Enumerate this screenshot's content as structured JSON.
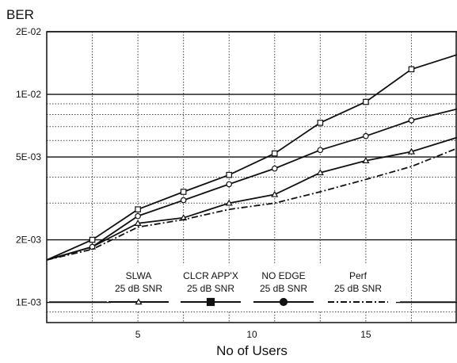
{
  "chart_data": {
    "type": "line",
    "title": "",
    "ylabel": "BER",
    "xlabel": "No of Users",
    "yscale": "log",
    "xlim": [
      1,
      19
    ],
    "ylim": [
      0.0008,
      0.02
    ],
    "x_ticks": [
      5,
      10,
      15
    ],
    "y_ticks": [
      {
        "value": 0.02,
        "label": "2E-02"
      },
      {
        "value": 0.01,
        "label": "1E-02"
      },
      {
        "value": 0.005,
        "label": "5E-03"
      },
      {
        "value": 0.002,
        "label": "2E-03"
      },
      {
        "value": 0.001,
        "label": "1E-03"
      }
    ],
    "grid": true,
    "legend_position": "bottom",
    "series": [
      {
        "name": "SLWA",
        "name_line2": "25 dB SNR",
        "marker": "triangle",
        "line_style": "solid",
        "x": [
          1,
          3,
          5,
          7,
          9,
          11,
          13,
          15,
          17,
          19
        ],
        "y": [
          0.0016,
          0.00185,
          0.0024,
          0.00255,
          0.003,
          0.0033,
          0.0042,
          0.0048,
          0.0053,
          0.0062
        ]
      },
      {
        "name": "CLCR APP'X",
        "name_line2": "25 dB SNR",
        "marker": "square",
        "line_style": "solid",
        "x": [
          1,
          3,
          5,
          7,
          9,
          11,
          13,
          15,
          17,
          19
        ],
        "y": [
          0.0016,
          0.002,
          0.0028,
          0.0034,
          0.0041,
          0.0052,
          0.0073,
          0.0092,
          0.0132,
          0.0155
        ]
      },
      {
        "name": "NO EDGE",
        "name_line2": "25 dB SNR",
        "marker": "circle",
        "line_style": "solid",
        "x": [
          1,
          3,
          5,
          7,
          9,
          11,
          13,
          15,
          17,
          19
        ],
        "y": [
          0.0016,
          0.00185,
          0.0026,
          0.0031,
          0.0037,
          0.0044,
          0.0054,
          0.0063,
          0.0075,
          0.0085
        ]
      },
      {
        "name": "Perf",
        "name_line2": "25 dB SNR",
        "marker": "none",
        "line_style": "dash-dot",
        "x": [
          1,
          3,
          5,
          7,
          9,
          11,
          13,
          15,
          17,
          19
        ],
        "y": [
          0.0016,
          0.0018,
          0.0023,
          0.0025,
          0.0028,
          0.003,
          0.0034,
          0.0039,
          0.0045,
          0.0055
        ]
      }
    ]
  }
}
